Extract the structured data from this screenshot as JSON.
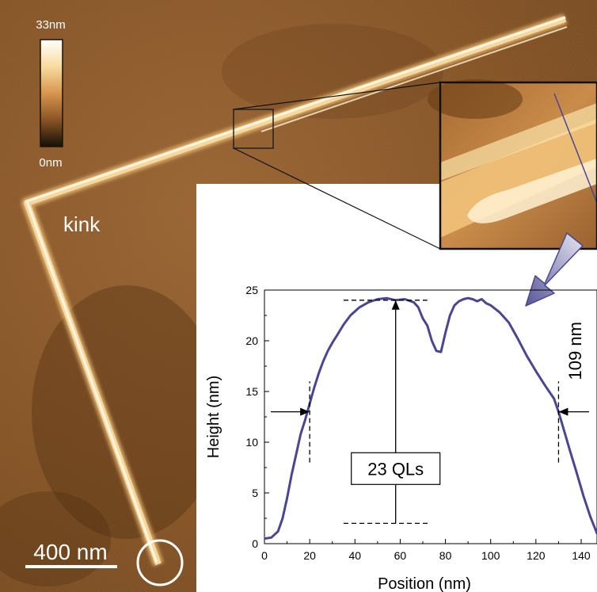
{
  "afm": {
    "colorbar_max": "33nm",
    "colorbar_min": "0nm",
    "kink_label": "kink",
    "scalebar_label": "400 nm"
  },
  "colors": {
    "afm_dark": "#5c3510",
    "afm_mid": "#8a5424",
    "afm_bright": "#fff4da",
    "profile_line": "#4a4690",
    "arrow": "#6a66a6"
  },
  "chart_data": {
    "type": "line",
    "xlabel": "Position (nm)",
    "ylabel": "Height (nm)",
    "xlim": [
      0,
      150
    ],
    "ylim": [
      0,
      25
    ],
    "x_ticks": [
      0,
      20,
      40,
      60,
      80,
      100,
      120,
      140
    ],
    "y_ticks": [
      0,
      5,
      10,
      15,
      20,
      25
    ],
    "grid": false,
    "series": [
      {
        "x": [
          0,
          3,
          6,
          8,
          10,
          12,
          14,
          16,
          18,
          20,
          22,
          24,
          26,
          28,
          30,
          32,
          35,
          38,
          42,
          46,
          50,
          54,
          58,
          62,
          66,
          68,
          70,
          72,
          74,
          76,
          78,
          80,
          82,
          84,
          86,
          88,
          90,
          92,
          94,
          96,
          98,
          100,
          104,
          108,
          112,
          116,
          120,
          124,
          128,
          130,
          132,
          135,
          138,
          141,
          144,
          147,
          150
        ],
        "y": [
          0.5,
          0.6,
          1.2,
          2.5,
          4.5,
          6.8,
          8.8,
          10.8,
          12.2,
          13.8,
          15.4,
          16.8,
          18.0,
          19.0,
          19.8,
          20.5,
          21.6,
          22.5,
          23.3,
          23.8,
          24.1,
          24.2,
          24.0,
          24.1,
          23.8,
          23.3,
          22.2,
          21.5,
          20.0,
          19.0,
          18.9,
          20.8,
          22.5,
          23.5,
          23.9,
          24.1,
          24.2,
          24.1,
          23.9,
          24.1,
          23.7,
          23.5,
          22.8,
          21.8,
          20.2,
          18.5,
          17.0,
          15.6,
          14.3,
          13.0,
          11.5,
          9.2,
          7.0,
          4.7,
          2.7,
          1.0,
          0.2
        ]
      }
    ],
    "annotations": {
      "height_label": "23 QLs",
      "width_label": "109 nm",
      "top_level": 24,
      "bottom_level": 2,
      "peak_x": 58,
      "left_edge_x": 20,
      "right_edge_x": 130,
      "width_arrow_y": 13,
      "top_dash_x": [
        35,
        72
      ],
      "bottom_dash_x": [
        35,
        73
      ],
      "edge_dash_y": [
        8,
        16
      ]
    }
  }
}
